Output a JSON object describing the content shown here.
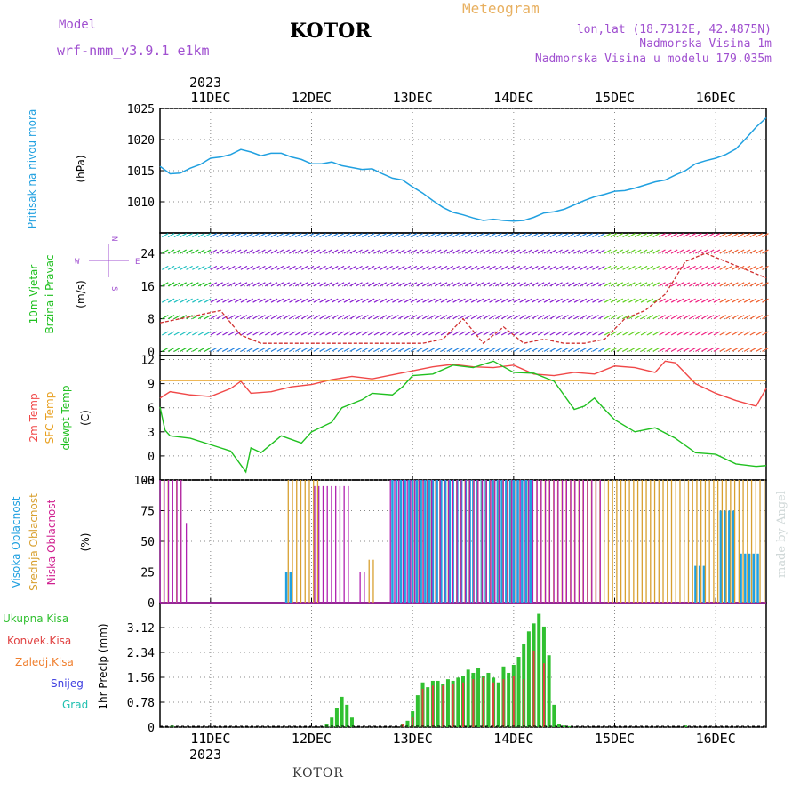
{
  "header": {
    "model_label": "Model",
    "model_name": "wrf-nmm_v3.9.1 e1km",
    "title": "KOTOR",
    "meteogram": "Meteogram",
    "lonlat": "lon,lat (18.7312E, 42.4875N)",
    "nv_height": "Nadmorska Visina 1m",
    "nv_model": "Nadmorska Visina u modelu 179.035m",
    "year": "2023"
  },
  "footer": {
    "city": "KOTOR",
    "watermark": "made by Angel"
  },
  "colors": {
    "pressure": "#20a0e0",
    "temp2m": "#f04848",
    "sfc": "#e8a020",
    "dewpt": "#20c020",
    "high_cloud": "#20a0e0",
    "mid_cloud": "#d8a030",
    "low_cloud": "#b020b0",
    "total_precip": "#30c030",
    "conv_precip": "#e04040",
    "wind_speed": "#d03030"
  },
  "chart_data": [
    {
      "type": "line",
      "title": "Pritisak na nivou mora",
      "ylabel": "(hPa)",
      "ylim": [
        1005,
        1025
      ],
      "yticks": [
        1010,
        1015,
        1020,
        1025
      ],
      "x_days": [
        "11DEC",
        "12DEC",
        "13DEC",
        "14DEC",
        "15DEC",
        "16DEC"
      ],
      "x_start": 10.5,
      "x_end": 16.5,
      "series": [
        {
          "name": "Pritisak na nivou mora",
          "x": [
            10.5,
            10.6,
            10.7,
            10.8,
            10.9,
            11.0,
            11.1,
            11.2,
            11.3,
            11.4,
            11.5,
            11.6,
            11.7,
            11.8,
            11.9,
            12.0,
            12.1,
            12.2,
            12.3,
            12.4,
            12.5,
            12.6,
            12.7,
            12.8,
            12.9,
            13.0,
            13.1,
            13.2,
            13.3,
            13.4,
            13.5,
            13.6,
            13.7,
            13.8,
            13.9,
            14.0,
            14.1,
            14.2,
            14.3,
            14.4,
            14.5,
            14.6,
            14.7,
            14.8,
            14.9,
            15.0,
            15.1,
            15.2,
            15.3,
            15.4,
            15.5,
            15.6,
            15.7,
            15.8,
            15.9,
            16.0,
            16.1,
            16.2,
            16.3,
            16.4,
            16.5
          ],
          "values": [
            1015.7,
            1014.5,
            1014.6,
            1015.4,
            1016.0,
            1017.0,
            1017.2,
            1017.6,
            1018.4,
            1018.0,
            1017.4,
            1017.8,
            1017.8,
            1017.2,
            1016.8,
            1016.1,
            1016.1,
            1016.4,
            1015.8,
            1015.5,
            1015.2,
            1015.3,
            1014.5,
            1013.8,
            1013.5,
            1012.4,
            1011.4,
            1010.2,
            1009.1,
            1008.3,
            1007.9,
            1007.4,
            1007.0,
            1007.2,
            1007.0,
            1006.9,
            1007.0,
            1007.5,
            1008.2,
            1008.4,
            1008.8,
            1009.5,
            1010.2,
            1010.8,
            1011.2,
            1011.7,
            1011.8,
            1012.2,
            1012.7,
            1013.2,
            1013.5,
            1014.3,
            1015.0,
            1016.1,
            1016.6,
            1017.0,
            1017.6,
            1018.5,
            1020.2,
            1022.0,
            1023.5
          ]
        }
      ]
    },
    {
      "type": "line",
      "title": "10m Vjetar Brzina i Pravac",
      "ylabel": "(m/s)",
      "compass": {
        "north": "N",
        "west": "W",
        "south": "S",
        "east": "E"
      },
      "ylim": [
        -1,
        29
      ],
      "yticks": [
        0,
        8,
        16,
        24
      ],
      "x_start": 10.5,
      "x_end": 16.5,
      "series": [
        {
          "name": "Brzina",
          "x": [
            10.5,
            10.7,
            10.9,
            11.1,
            11.3,
            11.5,
            11.7,
            11.9,
            12.1,
            12.3,
            12.5,
            12.7,
            12.9,
            13.1,
            13.3,
            13.5,
            13.7,
            13.9,
            14.1,
            14.3,
            14.5,
            14.7,
            14.9,
            15.1,
            15.3,
            15.5,
            15.7,
            15.9,
            16.1,
            16.3,
            16.5
          ],
          "values": [
            7,
            8,
            9,
            10,
            4,
            2,
            2,
            2,
            2,
            2,
            2,
            2,
            2,
            2,
            3,
            8,
            2,
            6,
            2,
            3,
            2,
            2,
            3,
            8,
            10,
            14,
            22,
            24,
            22,
            20,
            18
          ]
        }
      ]
    },
    {
      "type": "line",
      "title": "2m Temp",
      "ylabel": "(C)",
      "ylim": [
        -3,
        12.5
      ],
      "yticks": [
        -3,
        0,
        3,
        6,
        9,
        12
      ],
      "x_start": 10.5,
      "x_end": 16.5,
      "series": [
        {
          "name": "2m Temp",
          "x": [
            10.5,
            10.6,
            10.8,
            11.0,
            11.2,
            11.3,
            11.4,
            11.6,
            11.8,
            12.0,
            12.2,
            12.4,
            12.6,
            12.8,
            13.0,
            13.2,
            13.4,
            13.6,
            13.8,
            14.0,
            14.2,
            14.4,
            14.6,
            14.8,
            15.0,
            15.2,
            15.4,
            15.5,
            15.6,
            15.8,
            16.0,
            16.2,
            16.4,
            16.5
          ],
          "values": [
            7.2,
            8.0,
            7.6,
            7.4,
            8.4,
            9.3,
            7.8,
            8.0,
            8.6,
            8.9,
            9.5,
            9.9,
            9.6,
            10.1,
            10.6,
            11.1,
            11.4,
            11.1,
            11.0,
            11.3,
            10.2,
            10.0,
            10.4,
            10.2,
            11.2,
            11.0,
            10.4,
            11.8,
            11.6,
            9.0,
            7.8,
            6.9,
            6.2,
            8.4
          ]
        },
        {
          "name": "SFC Temp",
          "x": [
            10.5,
            16.5
          ],
          "values": [
            9.4,
            9.4
          ]
        },
        {
          "name": "dewpt Temp",
          "x": [
            10.5,
            10.55,
            10.6,
            10.8,
            11.0,
            11.1,
            11.2,
            11.35,
            11.4,
            11.5,
            11.7,
            11.9,
            12.0,
            12.2,
            12.3,
            12.5,
            12.6,
            12.8,
            12.9,
            13.0,
            13.2,
            13.4,
            13.6,
            13.8,
            14.0,
            14.2,
            14.4,
            14.6,
            14.7,
            14.8,
            14.9,
            15.0,
            15.2,
            15.4,
            15.6,
            15.8,
            16.0,
            16.2,
            16.4,
            16.5
          ],
          "values": [
            6.1,
            3.2,
            2.5,
            2.2,
            1.4,
            1.0,
            0.6,
            -2.0,
            1.0,
            0.4,
            2.5,
            1.6,
            3.0,
            4.2,
            6.0,
            7.0,
            7.8,
            7.6,
            8.6,
            10.0,
            10.2,
            11.3,
            11.0,
            11.8,
            10.4,
            10.3,
            9.3,
            5.8,
            6.2,
            7.2,
            5.8,
            4.5,
            3.0,
            3.5,
            2.2,
            0.4,
            0.2,
            -1.0,
            -1.3,
            -1.2
          ]
        }
      ]
    },
    {
      "type": "bar",
      "title": "Oblacnost",
      "ylabel": "(%)",
      "ylim": [
        0,
        100
      ],
      "yticks": [
        0,
        25,
        50,
        75,
        100
      ],
      "x_start": 10.5,
      "x_end": 16.5,
      "series": [
        {
          "name": "Visoka Oblacnost",
          "ranges": [
            [
              11.75,
              11.8,
              25
            ],
            [
              12.8,
              13.0,
              100
            ],
            [
              13.0,
              13.2,
              100
            ],
            [
              13.2,
              13.4,
              100
            ],
            [
              13.4,
              13.6,
              100
            ],
            [
              13.6,
              13.8,
              100
            ],
            [
              13.8,
              14.0,
              100
            ],
            [
              14.0,
              14.2,
              100
            ],
            [
              15.8,
              15.9,
              30
            ],
            [
              16.05,
              16.2,
              75
            ],
            [
              16.25,
              16.45,
              40
            ]
          ]
        },
        {
          "name": "Srednja Oblacnost",
          "ranges": [
            [
              10.52,
              10.72,
              100
            ],
            [
              11.75,
              12.05,
              100
            ],
            [
              12.55,
              12.6,
              35
            ],
            [
              13.0,
              16.48,
              100
            ]
          ]
        },
        {
          "name": "Niska Oblacnost",
          "ranges": [
            [
              10.52,
              10.75,
              100
            ],
            [
              10.78,
              10.8,
              65
            ],
            [
              12.05,
              12.4,
              95
            ],
            [
              12.5,
              12.55,
              25
            ],
            [
              12.8,
              13.0,
              100
            ],
            [
              13.0,
              14.9,
              100
            ]
          ]
        }
      ]
    },
    {
      "type": "bar",
      "title": "1hr Precip",
      "ylabel": "1hr Precip (mm)",
      "ylim": [
        0,
        3.9
      ],
      "yticks": [
        0,
        0.78,
        1.56,
        2.34,
        3.12
      ],
      "x_start": 10.5,
      "x_end": 16.5,
      "legend": [
        "Ukupna Kisa",
        "Konvek.Kisa",
        "Zaledj.Kisa",
        "Snijeg",
        "Grad"
      ],
      "series": [
        {
          "name": "Ukupna Kisa",
          "x": [
            10.62,
            12.15,
            12.2,
            12.25,
            12.3,
            12.35,
            12.4,
            12.9,
            12.95,
            13.0,
            13.05,
            13.1,
            13.15,
            13.2,
            13.25,
            13.3,
            13.35,
            13.4,
            13.45,
            13.5,
            13.55,
            13.6,
            13.65,
            13.7,
            13.75,
            13.8,
            13.85,
            13.9,
            13.95,
            14.0,
            14.05,
            14.1,
            14.15,
            14.2,
            14.25,
            14.3,
            14.35,
            14.4,
            14.45,
            14.5,
            14.55,
            15.7
          ],
          "values": [
            0.05,
            0.1,
            0.3,
            0.6,
            0.95,
            0.7,
            0.3,
            0.1,
            0.2,
            0.5,
            1.0,
            1.4,
            1.25,
            1.45,
            1.45,
            1.35,
            1.5,
            1.45,
            1.55,
            1.6,
            1.8,
            1.7,
            1.85,
            1.6,
            1.7,
            1.55,
            1.4,
            1.9,
            1.7,
            1.95,
            2.2,
            2.6,
            3.0,
            3.25,
            3.55,
            3.15,
            2.25,
            0.7,
            0.1,
            0.05,
            0.03,
            0.05
          ]
        },
        {
          "name": "Konvek.Kisa",
          "x": [
            12.9,
            13.0,
            13.1,
            13.2,
            13.3,
            13.4,
            13.5,
            13.6,
            13.7,
            13.8,
            13.9,
            14.0,
            14.1,
            14.2,
            14.3
          ],
          "values": [
            0.1,
            0.3,
            1.2,
            1.3,
            1.3,
            1.35,
            1.4,
            1.5,
            1.55,
            1.4,
            1.5,
            1.6,
            1.5,
            2.4,
            2.0
          ]
        }
      ]
    }
  ],
  "labels": {
    "pressure": "Pritisak na nivou mora",
    "pressure_unit": "(hPa)",
    "wind1": "10m Vjetar",
    "wind2": "Brzina i Pravac",
    "wind_unit": "(m/s)",
    "t2m": "2m Temp",
    "tsfc": "SFC Temp",
    "tdew": "dewpt Temp",
    "temp_unit": "(C)",
    "chigh": "Visoka Oblacnost",
    "cmid": "Srednja Oblacnost",
    "clow": "Niska Oblacnost",
    "cloud_unit": "(%)",
    "precip_unit": "1hr Precip (mm)",
    "leg_total": "Ukupna Kisa",
    "leg_conv": "Konvek.Kisa",
    "leg_frz": "Zaledj.Kisa",
    "leg_snow": "Snijeg",
    "leg_hail": "Grad"
  }
}
